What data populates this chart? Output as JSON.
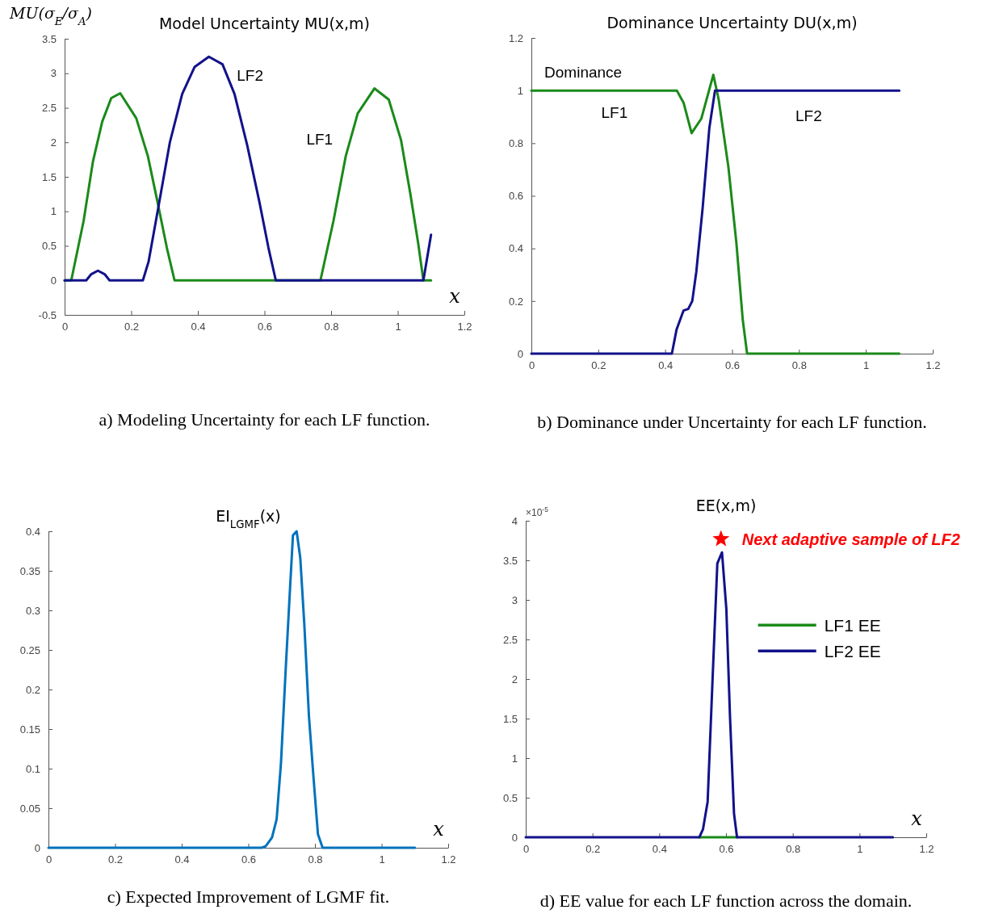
{
  "chart_data": [
    {
      "type": "line",
      "title": "Model Uncertainty MU(x,m)",
      "ylabel": "MU(σ$_{E}$/σ$_{A}$)",
      "xlabel": "x",
      "xlim": [
        0,
        1.2
      ],
      "xticks": [
        0,
        0.2,
        0.4,
        0.6,
        0.8,
        1,
        1.2
      ],
      "ylim": [
        -0.5,
        3.5
      ],
      "yticks": [
        -0.5,
        0,
        0.5,
        1,
        1.5,
        2,
        2.5,
        3,
        3.5
      ],
      "series": [
        {
          "name": "LF1",
          "color": "#1a8a1a",
          "x": [
            0,
            0.02,
            0.057,
            0.085,
            0.113,
            0.14,
            0.167,
            0.215,
            0.25,
            0.28,
            0.307,
            0.33,
            0.768,
            0.807,
            0.844,
            0.88,
            0.93,
            0.973,
            1.01,
            1.038,
            1.061,
            1.077,
            1.1
          ],
          "values": [
            0,
            0,
            0.86,
            1.72,
            2.3,
            2.64,
            2.71,
            2.35,
            1.8,
            1.11,
            0.47,
            0,
            0,
            0.86,
            1.8,
            2.42,
            2.78,
            2.62,
            2.03,
            1.25,
            0.55,
            0,
            0
          ]
        },
        {
          "name": "LF2",
          "color": "#12128a",
          "x": [
            0,
            0.065,
            0.08,
            0.1,
            0.12,
            0.135,
            0.235,
            0.252,
            0.28,
            0.316,
            0.353,
            0.39,
            0.433,
            0.474,
            0.51,
            0.548,
            0.585,
            0.612,
            0.634,
            1.077,
            1.1
          ],
          "values": [
            0,
            0,
            0.09,
            0.14,
            0.09,
            0,
            0,
            0.27,
            1.02,
            2.0,
            2.7,
            3.09,
            3.24,
            3.13,
            2.7,
            1.96,
            1.13,
            0.47,
            0,
            0,
            0.66
          ]
        }
      ],
      "annotations": [
        "a) Modeling Uncertainty for each LF function."
      ]
    },
    {
      "type": "line",
      "title": "Dominance Uncertainty DU(x,m)",
      "xlim": [
        0,
        1.2
      ],
      "xticks": [
        0,
        0.2,
        0.4,
        0.6,
        0.8,
        1,
        1.2
      ],
      "ylim": [
        0,
        1.2
      ],
      "yticks": [
        0,
        0.2,
        0.4,
        0.6,
        0.8,
        1,
        1.2
      ],
      "series": [
        {
          "name": "LF1",
          "color": "#1a8a1a",
          "x": [
            0,
            0.435,
            0.455,
            0.479,
            0.508,
            0.544,
            0.56,
            0.589,
            0.613,
            0.632,
            0.645,
            1.1
          ],
          "values": [
            1,
            1,
            0.954,
            0.838,
            0.893,
            1.06,
            0.966,
            0.71,
            0.42,
            0.128,
            0,
            0
          ]
        },
        {
          "name": "LF2",
          "color": "#12128a",
          "x": [
            0,
            0.42,
            0.434,
            0.455,
            0.469,
            0.481,
            0.493,
            0.512,
            0.532,
            0.549,
            1.1
          ],
          "values": [
            0,
            0,
            0.091,
            0.164,
            0.17,
            0.2,
            0.31,
            0.553,
            0.857,
            1,
            1
          ]
        }
      ],
      "annotations": [
        "Dominance",
        "b) Dominance under Uncertainty for each LF function."
      ]
    },
    {
      "type": "line",
      "title": "EI$_{LGMF}$(x)",
      "xlabel": "x",
      "xlim": [
        0,
        1.2
      ],
      "xticks": [
        0,
        0.2,
        0.4,
        0.6,
        0.8,
        1,
        1.2
      ],
      "ylim": [
        0,
        0.4
      ],
      "yticks": [
        0,
        0.05,
        0.1,
        0.15,
        0.2,
        0.25,
        0.3,
        0.35,
        0.4
      ],
      "series": [
        {
          "color": "#0072bd",
          "x": [
            0,
            0.64,
            0.652,
            0.671,
            0.685,
            0.698,
            0.712,
            0.726,
            0.734,
            0.745,
            0.756,
            0.768,
            0.782,
            0.796,
            0.809,
            0.823,
            1.1
          ],
          "values": [
            0,
            0,
            0.002,
            0.013,
            0.036,
            0.107,
            0.224,
            0.334,
            0.395,
            0.4,
            0.366,
            0.283,
            0.166,
            0.087,
            0.017,
            0,
            0
          ]
        }
      ],
      "annotations": [
        "c) Expected Improvement of LGMF fit."
      ]
    },
    {
      "type": "line",
      "title": "EE(x,m)",
      "xlabel": "x",
      "xlim": [
        0,
        1.2
      ],
      "xticks": [
        0,
        0.2,
        0.4,
        0.6,
        0.8,
        1,
        1.2
      ],
      "ylim": [
        0,
        4
      ],
      "yticks": [
        0,
        0.5,
        1,
        1.5,
        2,
        2.5,
        3,
        3.5,
        4
      ],
      "legend": "right",
      "series": [
        {
          "name": "LF1 EE",
          "color": "#1a8a1a",
          "x": [
            0.52,
            0.633
          ],
          "values": [
            0,
            0
          ]
        },
        {
          "name": "LF2 EE",
          "color": "#12128a",
          "x": [
            0,
            0.52,
            0.531,
            0.545,
            0.559,
            0.574,
            0.588,
            0.601,
            0.612,
            0.624,
            0.633,
            1.1
          ],
          "values": [
            0,
            0,
            0.1,
            0.45,
            1.92,
            3.46,
            3.6,
            2.89,
            1.52,
            0.3,
            0,
            0
          ]
        },
        {
          "type": "scatter",
          "marker": "star",
          "color": "#ff0000",
          "x": [
            0.585
          ],
          "values": [
            3.77
          ]
        }
      ],
      "annotations": [
        "×10$^{-5}$",
        {
          "text": "Next adaptive sample of LF2",
          "x": 0.585,
          "y": 3.77
        },
        "d) EE value for each LF function across the domain."
      ]
    }
  ]
}
